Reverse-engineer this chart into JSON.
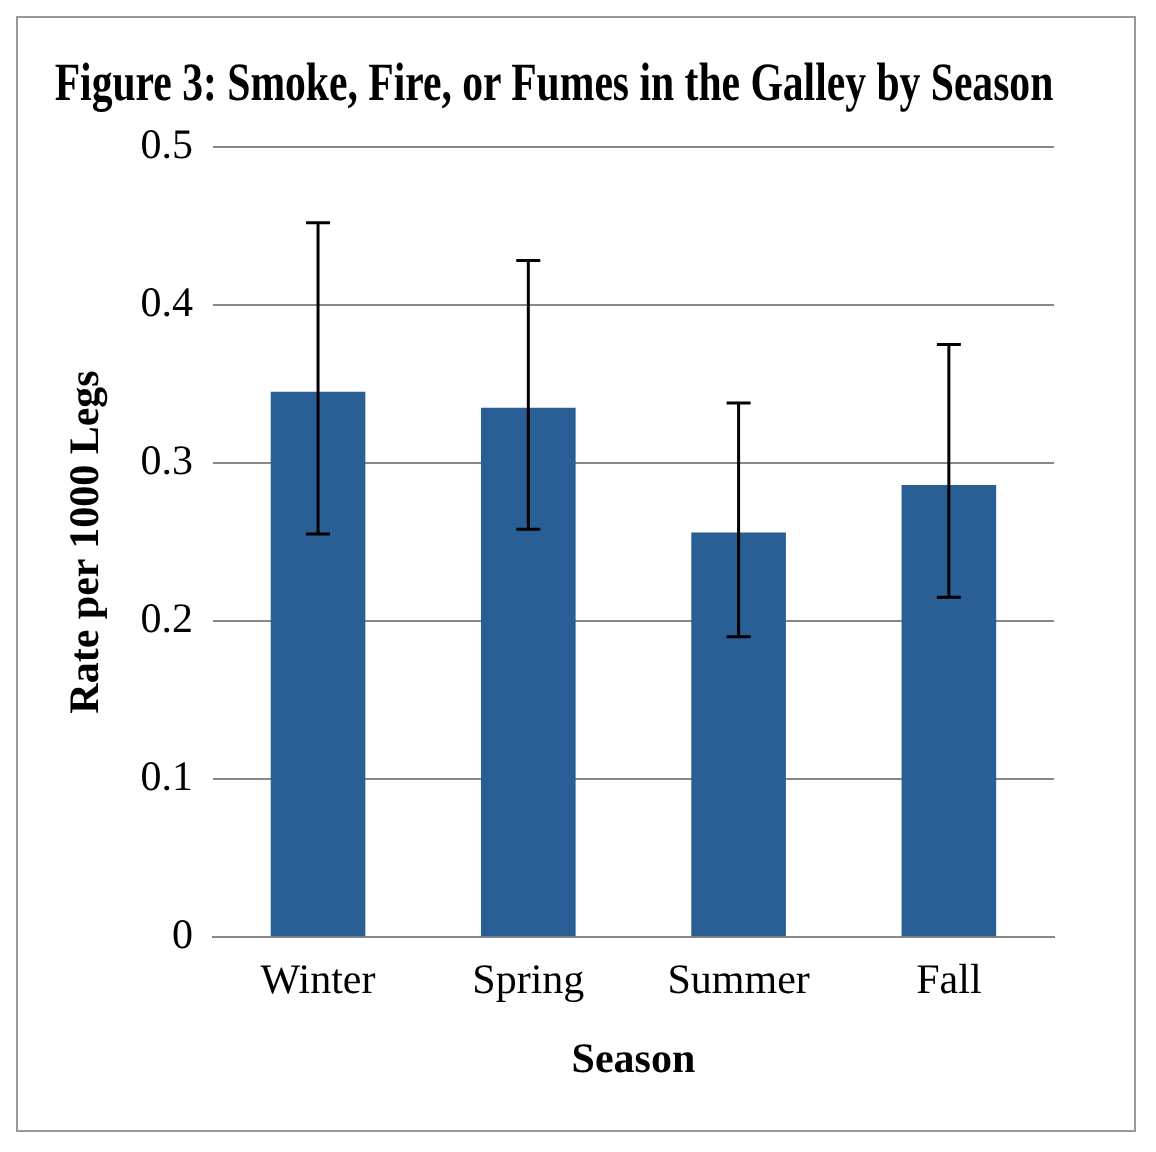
{
  "chart_data": {
    "type": "bar",
    "title": "Figure 3: Smoke, Fire, or Fumes in the Galley by Season",
    "xlabel": "Season",
    "ylabel": "Rate per 1000 Legs",
    "categories": [
      "Winter",
      "Spring",
      "Summer",
      "Fall"
    ],
    "values": [
      0.345,
      0.335,
      0.256,
      0.286
    ],
    "errors": [
      [
        0.255,
        0.452
      ],
      [
        0.258,
        0.428
      ],
      [
        0.19,
        0.338
      ],
      [
        0.215,
        0.375
      ]
    ],
    "color": "#2a5f95",
    "ylim": [
      0,
      0.5
    ],
    "yticks": [
      0,
      0.1,
      0.2,
      0.3,
      0.4,
      0.5
    ],
    "grid": "y",
    "legend": false
  }
}
